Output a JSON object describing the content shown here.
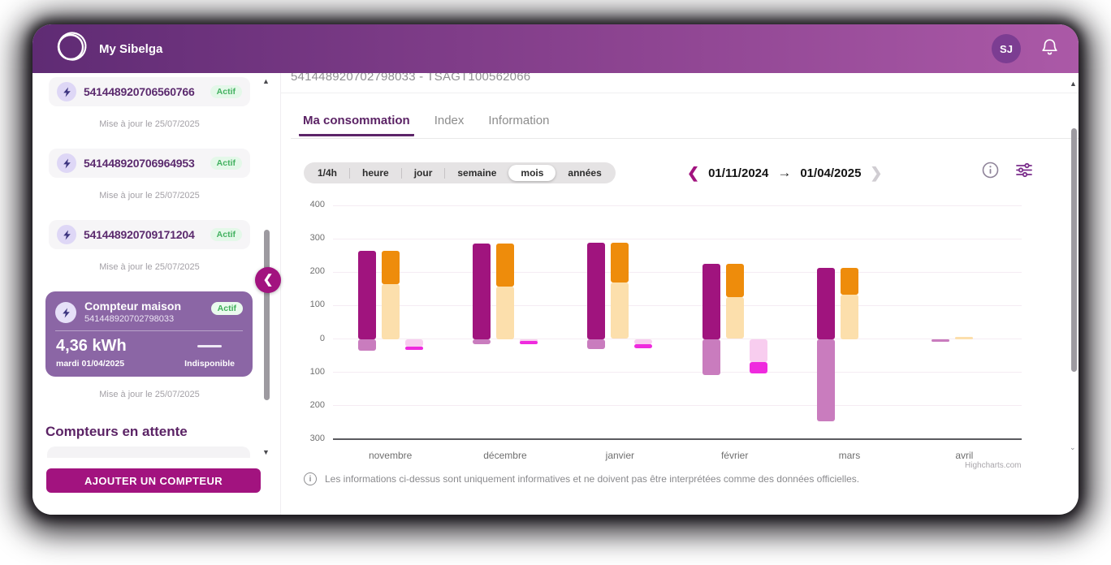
{
  "header": {
    "brand": "My Sibelga",
    "avatar_initials": "SJ"
  },
  "sidebar": {
    "meters": [
      {
        "id": "541448920706560766",
        "status": "Actif",
        "updated": "Mise à jour le 25/07/2025"
      },
      {
        "id": "541448920706964953",
        "status": "Actif",
        "updated": "Mise à jour le 25/07/2025"
      },
      {
        "id": "541448920709171204",
        "status": "Actif",
        "updated": "Mise à jour le 25/07/2025"
      }
    ],
    "selected_meter": {
      "name": "Compteur maison",
      "id": "541448920702798033",
      "status": "Actif",
      "value": "4,36 kWh",
      "value_date": "mardi 01/04/2025",
      "secondary_label": "Indisponible",
      "updated": "Mise à jour le 25/07/2025"
    },
    "pending_title": "Compteurs en attente",
    "add_button": "AJOUTER UN COMPTEUR"
  },
  "main": {
    "title": "541448920702798033 - TSAGT100562066",
    "tabs": [
      {
        "label": "Ma consommation",
        "active": true
      },
      {
        "label": "Index",
        "active": false
      },
      {
        "label": "Information",
        "active": false
      }
    ],
    "granularity": {
      "options": [
        "1/4h",
        "heure",
        "jour",
        "semaine",
        "mois",
        "années"
      ],
      "selected": "mois"
    },
    "date_range": {
      "from": "01/11/2024",
      "to": "01/04/2025",
      "arrow": "→"
    },
    "disclaimer": "Les informations ci-dessus sont uniquement informatives et ne doivent pas être interprétées comme des données officielles.",
    "credits": "Highcharts.com"
  },
  "chart_data": {
    "type": "bar",
    "unit": "kWh",
    "title": "",
    "categories": [
      "novembre",
      "décembre",
      "janvier",
      "février",
      "mars",
      "avril"
    ],
    "ylim": [
      -300,
      400
    ],
    "yticks": [
      400,
      300,
      200,
      100,
      0,
      -100,
      -200,
      -300
    ],
    "ytick_labels_absolute": true,
    "grid": true,
    "legend": false,
    "series": [
      {
        "name": "consommation-totale-magenta",
        "color": "#a0147e",
        "column": 0,
        "values": [
          265,
          285,
          288,
          226,
          214,
          0
        ]
      },
      {
        "name": "injection-totale-mauve",
        "color": "#c97cbe",
        "column": 0,
        "values": [
          -36,
          -15,
          -30,
          -107,
          -247,
          -7
        ]
      },
      {
        "name": "consommation-creme",
        "color": "#fcdfac",
        "column": 1,
        "values": [
          165,
          157,
          170,
          125,
          133,
          2
        ]
      },
      {
        "name": "consommation-orange",
        "color": "#ee8c0b",
        "column": 1,
        "values": [
          100,
          128,
          118,
          101,
          81,
          0
        ]
      },
      {
        "name": "injection-rose-pale",
        "color": "#f8cdef",
        "column": 2,
        "values": [
          -22,
          -6,
          -16,
          -70,
          0,
          0
        ]
      },
      {
        "name": "injection-magenta-vif",
        "color": "#ef2ade",
        "column": 2,
        "values": [
          -12,
          -10,
          -13,
          -33,
          0,
          0
        ]
      }
    ]
  }
}
